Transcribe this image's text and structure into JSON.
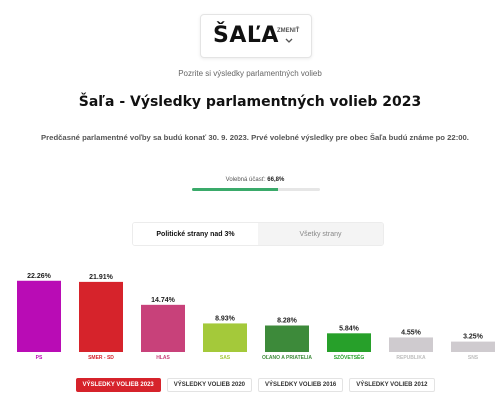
{
  "header": {
    "town_name": "ŠAĽA",
    "change_label": "ZMENIŤ",
    "subtitle": "Pozrite si výsledky parlamentných volieb",
    "page_title": "Šaľa - Výsledky parlamentných volieb 2023",
    "info": "Predčasné parlamentné voľby sa budú konať 30. 9. 2023. Prvé volebné výsledky pre obec Šaľa budú známe po 22:00."
  },
  "turnout": {
    "label": "Volebná účasť:",
    "value_text": "66,8%",
    "value": 66.8,
    "bar_color": "#3aaa6a"
  },
  "tabs": [
    {
      "label": "Politické strany nad 3%",
      "active": true
    },
    {
      "label": "Všetky strany",
      "active": false
    }
  ],
  "chart_data": {
    "type": "bar",
    "categories": [
      "PS",
      "SMER - SD",
      "HLAS",
      "SAS",
      "OĽANO A PRIATELIA",
      "SZÖVETSÉG",
      "REPUBLIKA",
      "SNS"
    ],
    "values": [
      22.26,
      21.91,
      14.74,
      8.93,
      8.28,
      5.84,
      4.55,
      3.25
    ],
    "value_labels": [
      "22.26%",
      "21.91%",
      "14.74%",
      "8.93%",
      "8.28%",
      "5.84%",
      "4.55%",
      "3.25%"
    ],
    "colors": [
      "#b90cb5",
      "#d6232b",
      "#c8417a",
      "#a4c93a",
      "#3d8a3a",
      "#27a02a",
      "#cfcbcf",
      "#cfcbcf"
    ],
    "label_colors": [
      "#b90cb5",
      "#d6232b",
      "#c8417a",
      "#a4c93a",
      "#3d8a3a",
      "#27a02a",
      "#bdbdbd",
      "#bdbdbd"
    ],
    "ylim": [
      0,
      25
    ]
  },
  "year_buttons": [
    {
      "label": "VÝSLEDKY VOLIEB 2023",
      "active": true
    },
    {
      "label": "VÝSLEDKY VOLIEB 2020",
      "active": false
    },
    {
      "label": "VÝSLEDKY VOLIEB 2016",
      "active": false
    },
    {
      "label": "VÝSLEDKY VOLIEB 2012",
      "active": false
    }
  ]
}
